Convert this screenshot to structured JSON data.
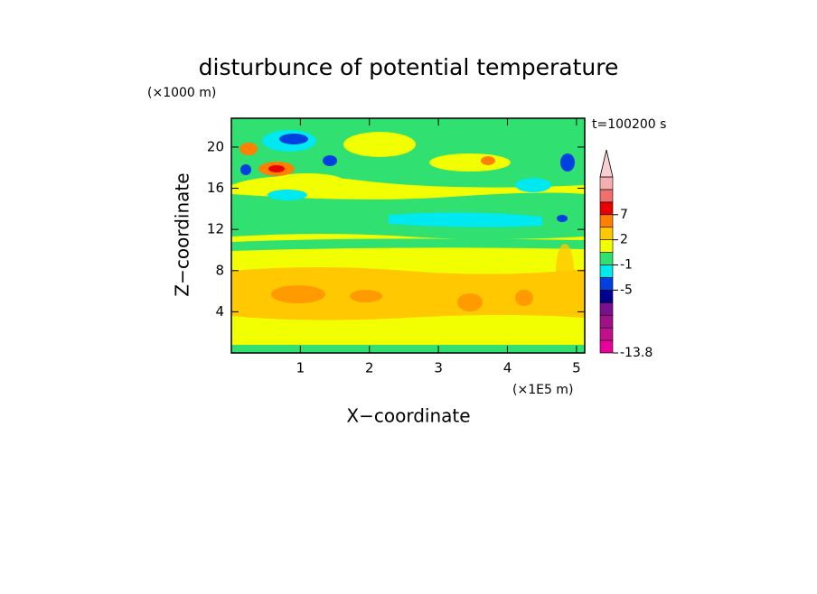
{
  "chart_data": {
    "type": "contour",
    "title": "disturbunce of potential temperature",
    "y_unit": "(×1000 m)",
    "x_unit": "(×1E5 m)",
    "xlabel": "X−coordinate",
    "ylabel": "Z−coordinate",
    "annotation": "t=100200 s",
    "xlim": [
      0,
      5.12
    ],
    "xticks": [
      1,
      2,
      3,
      4,
      5
    ],
    "ylim": [
      0,
      22.8
    ],
    "yticks": [
      4,
      8,
      12,
      16,
      20
    ],
    "colorbar": {
      "colors": [
        "#e8009a",
        "#c0108c",
        "#a01088",
        "#7a1090",
        "#000090",
        "#0040e0",
        "#00e8f0",
        "#30e070",
        "#f2ff00",
        "#ffc800",
        "#ff8000",
        "#e80000",
        "#f07070",
        "#f4b0b0"
      ],
      "extend_color": "#f8d0d0",
      "labels": [
        -13.8,
        null,
        null,
        null,
        null,
        -5,
        null,
        -1,
        null,
        2,
        null,
        7,
        null,
        null,
        null
      ]
    }
  }
}
